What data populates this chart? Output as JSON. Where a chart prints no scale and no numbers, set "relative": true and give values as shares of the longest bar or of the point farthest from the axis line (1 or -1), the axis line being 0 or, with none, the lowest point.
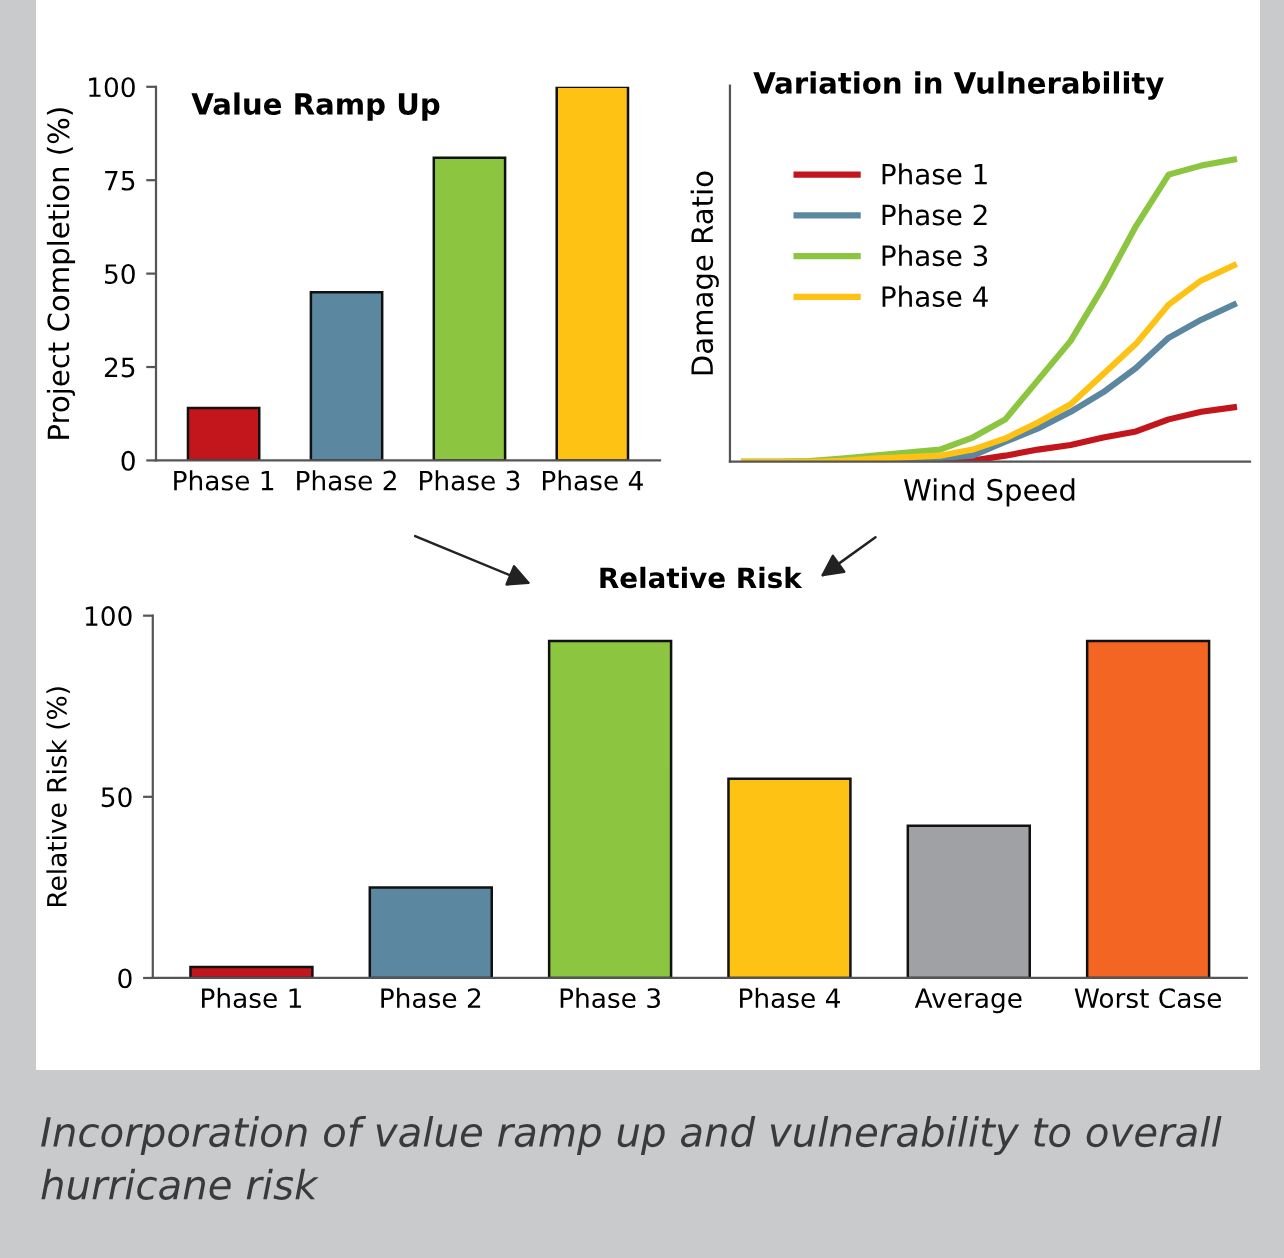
{
  "chart_data": [
    {
      "type": "bar",
      "title": "Value Ramp Up",
      "ylabel": "Project Completion (%)",
      "categories": [
        "Phase 1",
        "Phase 2",
        "Phase 3",
        "Phase 4"
      ],
      "values": [
        14,
        45,
        81,
        100
      ],
      "colors": [
        "#c3161c",
        "#5b87a1",
        "#8cc540",
        "#fdc214"
      ],
      "ylim": [
        0,
        100
      ],
      "yticks": [
        0,
        25,
        50,
        75,
        100
      ],
      "grid": false
    },
    {
      "type": "line",
      "title": "Variation in Vulnerability",
      "xlabel": "Wind Speed",
      "ylabel": "Damage Ratio",
      "relative": true,
      "tick_labels": false,
      "legend": "top left",
      "categories": [
        null,
        null,
        null,
        null,
        null,
        null,
        null,
        null,
        null,
        null,
        null,
        null,
        null,
        null,
        null,
        null
      ],
      "series": [
        {
          "name": "Phase 1",
          "color": "#c3161c",
          "values": [
            null,
            null,
            null,
            null,
            null,
            null,
            0.002,
            0.004,
            0.02,
            0.04,
            0.055,
            0.08,
            0.1,
            0.14,
            0.165,
            0.18
          ]
        },
        {
          "name": "Phase 2",
          "color": "#5b87a1",
          "values": [
            0,
            0,
            0,
            0.002,
            0.005,
            0.008,
            0.012,
            0.02,
            0.066,
            0.11,
            0.165,
            0.23,
            0.31,
            0.41,
            0.47,
            0.52
          ]
        },
        {
          "name": "Phase 3",
          "color": "#8cc540",
          "values": [
            0,
            0,
            0.002,
            0.01,
            0.02,
            0.03,
            0.04,
            0.08,
            0.14,
            0.27,
            0.4,
            0.58,
            0.78,
            0.95,
            0.98,
            1
          ]
        },
        {
          "name": "Phase 4",
          "color": "#fdc214",
          "values": [
            0,
            0,
            0,
            0.003,
            0.01,
            0.015,
            0.02,
            0.04,
            0.077,
            0.13,
            0.19,
            0.29,
            0.39,
            0.52,
            0.6,
            0.65
          ]
        }
      ]
    },
    {
      "type": "bar",
      "title": "Relative Risk",
      "ylabel": "Relative Risk (%)",
      "categories": [
        "Phase 1",
        "Phase 2",
        "Phase 3",
        "Phase 4",
        "Average",
        "Worst Case"
      ],
      "values": [
        3,
        25,
        93,
        55,
        42,
        93
      ],
      "colors": [
        "#c3161c",
        "#5b87a1",
        "#8cc540",
        "#fdc214",
        "#a0a1a4",
        "#f26522"
      ],
      "ylim": [
        0,
        100
      ],
      "yticks": [
        0,
        50,
        100
      ],
      "grid": false,
      "annotations": [
        "Incorporation of value ramp up and vulnerability to overall hurricane risk"
      ]
    }
  ]
}
